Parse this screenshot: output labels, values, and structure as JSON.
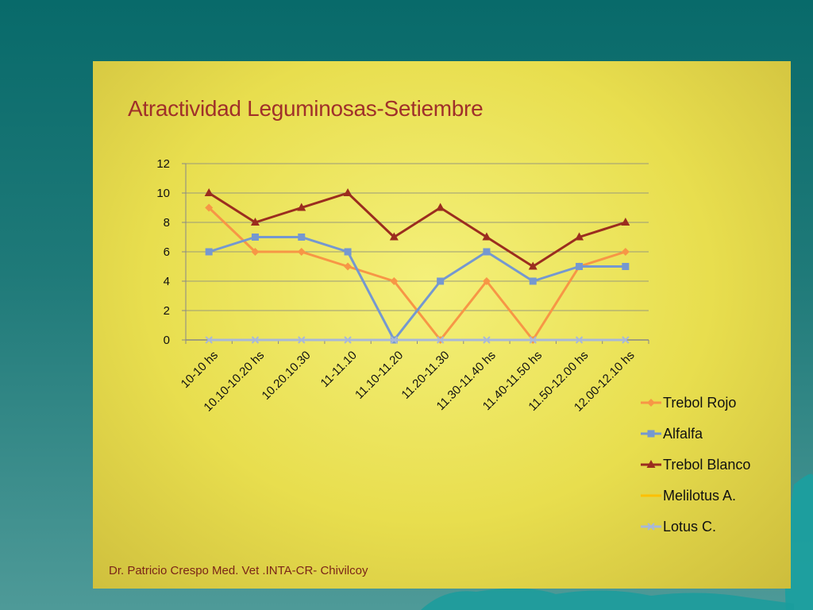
{
  "slide": {
    "background_color": "#086a6a",
    "panel_color": "#ece45a",
    "credit": "Dr. Patricio Crespo Med. Vet .INTA-CR- Chivilcoy"
  },
  "chart_data": {
    "type": "line",
    "title": "Atractividad Leguminosas-Setiembre",
    "xlabel": "",
    "ylabel": "",
    "ylim": [
      0,
      12
    ],
    "yticks": [
      0,
      2,
      4,
      6,
      8,
      10,
      12
    ],
    "grid": true,
    "legend_position": "right",
    "categories": [
      "10-10 hs",
      "10.10-10.20 hs",
      "10.20.10.30",
      "11-11.10",
      "11.10-11.20",
      "11.20-11.30",
      "11.30-11.40 hs",
      "11.40-11.50 hs",
      "11.50-12.00 hs",
      "12.00-12.10 hs"
    ],
    "series": [
      {
        "name": "Trebol Rojo",
        "color": "#f79646",
        "marker": "diamond",
        "values": [
          9,
          6,
          6,
          5,
          4,
          0,
          4,
          0,
          5,
          6
        ]
      },
      {
        "name": "Alfalfa",
        "color": "#7598d0",
        "marker": "square",
        "values": [
          6,
          7,
          7,
          6,
          0,
          4,
          6,
          4,
          5,
          5
        ]
      },
      {
        "name": "Trebol Blanco",
        "color": "#9b2d1f",
        "marker": "triangle",
        "values": [
          10,
          8,
          9,
          10,
          7,
          9,
          7,
          5,
          7,
          8
        ]
      },
      {
        "name": "Melilotus A.",
        "color": "#ffc000",
        "marker": "none",
        "values": [
          0,
          0,
          0,
          0,
          0,
          0,
          0,
          0,
          0,
          0
        ]
      },
      {
        "name": "Lotus C.",
        "color": "#a8b8d8",
        "marker": "x",
        "values": [
          0,
          0,
          0,
          0,
          0,
          0,
          0,
          0,
          0,
          0
        ]
      }
    ]
  }
}
